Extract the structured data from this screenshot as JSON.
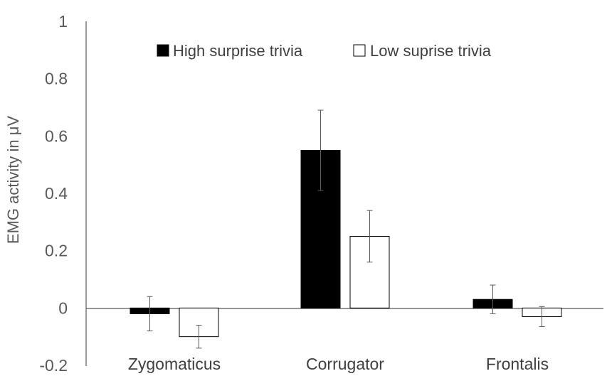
{
  "chart_data": {
    "type": "bar",
    "title": "",
    "xlabel": "",
    "ylabel": "EMG activity in μV",
    "ylim": [
      -0.2,
      1
    ],
    "yticks": [
      "-0.2",
      "0",
      "0.2",
      "0.4",
      "0.6",
      "0.8",
      "1"
    ],
    "grid": false,
    "legend_position": "top",
    "categories": [
      "Zygomaticus",
      "Corrugator",
      "Frontalis"
    ],
    "series": [
      {
        "name": "High surprise trivia",
        "color": "#000000",
        "values": [
          -0.02,
          0.55,
          0.03
        ],
        "error": [
          0.06,
          0.14,
          0.05
        ]
      },
      {
        "name": "Low suprise trivia",
        "color": "#ffffff",
        "values": [
          -0.1,
          0.25,
          -0.03
        ],
        "error": [
          0.04,
          0.09,
          0.035
        ]
      }
    ]
  }
}
